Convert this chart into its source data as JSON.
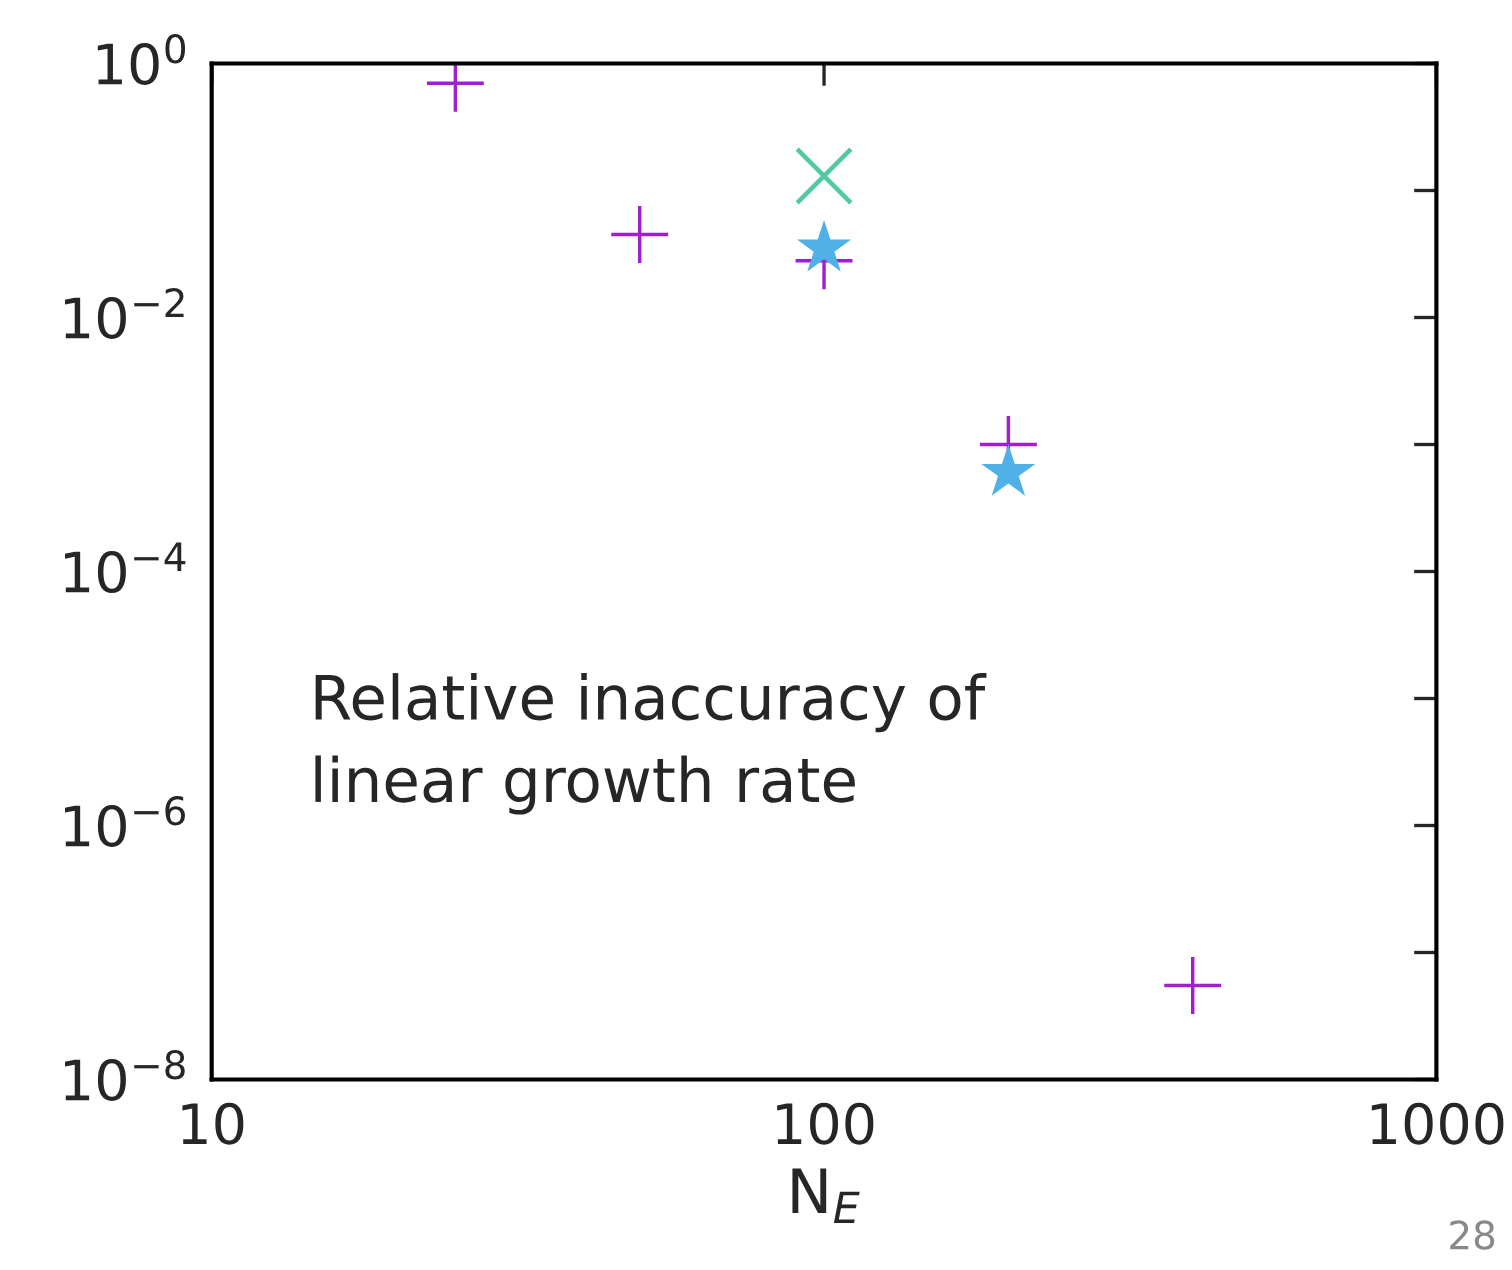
{
  "chart_data": {
    "type": "scatter",
    "xlabel": "N$_{E}$",
    "log": "xy",
    "xlim": [
      10,
      1000
    ],
    "ylim": [
      1e-08,
      1
    ],
    "xticks": [
      10,
      100,
      1000
    ],
    "yticks": [
      {
        "value": 1e-08,
        "label": "10$^{−8}$"
      },
      {
        "value": 1e-07,
        "label": null
      },
      {
        "value": 1e-06,
        "label": "10$^{−6}$"
      },
      {
        "value": 1e-05,
        "label": null
      },
      {
        "value": 0.0001,
        "label": "10$^{−4}$"
      },
      {
        "value": 0.001,
        "label": null
      },
      {
        "value": 0.01,
        "label": "10$^{−2}$"
      },
      {
        "value": 0.1,
        "label": null
      },
      {
        "value": 1,
        "label": "10$^{0}$"
      }
    ],
    "series": [
      {
        "color": "#a020d0",
        "marker": "cross",
        "x": [
          25,
          50,
          100,
          200,
          400
        ],
        "values": [
          0.7,
          0.045,
          0.028,
          0.001,
          5.5e-08
        ]
      },
      {
        "color": "#50c8a0",
        "marker": "x",
        "x": [
          100
        ],
        "values": [
          0.13
        ]
      },
      {
        "color": "#50b0e8",
        "marker": "star",
        "x": [
          100,
          200
        ],
        "values": [
          0.035,
          0.0006
        ]
      }
    ],
    "annotations": [
      {
        "text": "Relative inaccuracy of\nlinear growth rate"
      },
      "28"
    ],
    "grid": false,
    "legend": false
  }
}
